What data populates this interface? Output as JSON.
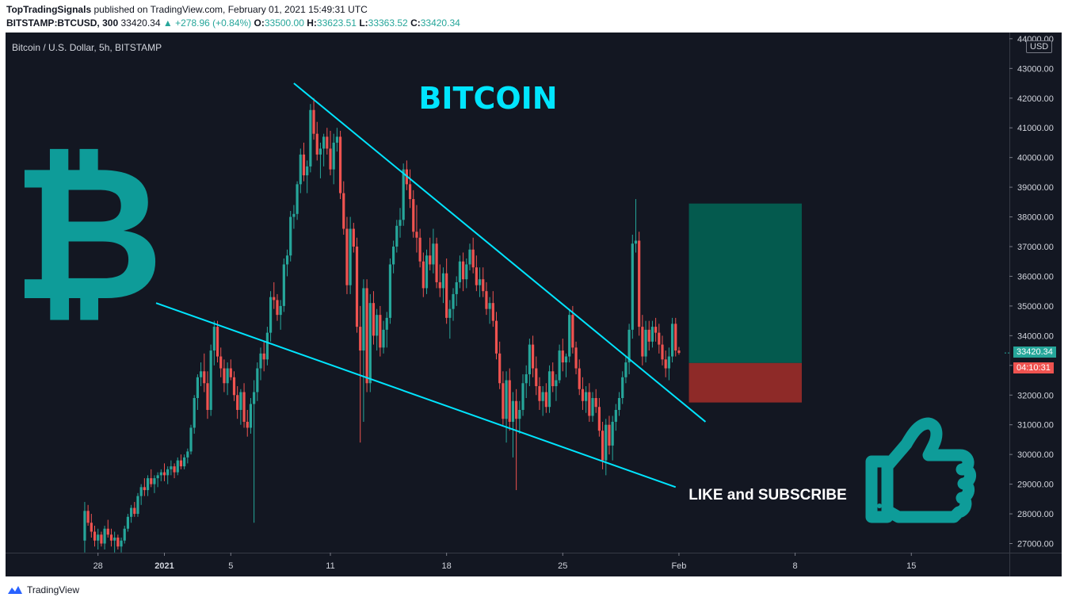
{
  "header": {
    "publisher": "TopTradingSignals",
    "published_text": "published on TradingView.com, February 01, 2021 15:49:31 UTC",
    "symbol": "BITSTAMP:BTCUSD, 300",
    "last": "33420.34",
    "change": "▲ +278.96 (+0.84%)",
    "o_label": "O:",
    "o_value": "33500.00",
    "h_label": "H:",
    "h_value": "33623.51",
    "l_label": "L:",
    "l_value": "33363.52",
    "c_label": "C:",
    "c_value": "33420.34"
  },
  "chart_data": {
    "type": "candlestick",
    "title": "Bitcoin / U.S. Dollar, 5h, BITSTAMP",
    "currency": "USD",
    "y_ticks": [
      "27000.00",
      "28000.00",
      "29000.00",
      "30000.00",
      "31000.00",
      "32000.00",
      "33000.00",
      "34000.00",
      "35000.00",
      "36000.00",
      "37000.00",
      "38000.00",
      "39000.00",
      "40000.00",
      "41000.00",
      "42000.00",
      "43000.00",
      "44000.00"
    ],
    "ylim": [
      26700,
      44100
    ],
    "x_ticks": [
      {
        "label": "28",
        "day": -4
      },
      {
        "label": "2021",
        "day": 0
      },
      {
        "label": "5",
        "day": 4
      },
      {
        "label": "11",
        "day": 10
      },
      {
        "label": "18",
        "day": 17
      },
      {
        "label": "25",
        "day": 24
      },
      {
        "label": "Feb",
        "day": 31
      },
      {
        "label": "8",
        "day": 38
      },
      {
        "label": "15",
        "day": 45
      }
    ],
    "last_price": "33420.34",
    "countdown": "04:10:31",
    "trendlines": [
      {
        "x1": 7.8,
        "y1": 42500,
        "x2": 32.6,
        "y2": 31100
      },
      {
        "x1": -0.5,
        "y1": 35100,
        "x2": 30.8,
        "y2": 28900
      }
    ],
    "long_position": {
      "x_start": 31.6,
      "x_end": 38.4,
      "target": 38450,
      "entry": 33080,
      "stop": 31750
    },
    "colors": {
      "up": "#26a69a",
      "down": "#ef5350",
      "trend": "#00e5ff",
      "target_fill": "#045a4e",
      "stop_fill": "#8e2a28",
      "bg": "#131722"
    },
    "candles_ohlc": [
      [
        -4.8,
        27100,
        28400,
        26700,
        28100
      ],
      [
        -4.6,
        28100,
        28300,
        27600,
        27700
      ],
      [
        -4.4,
        27700,
        28000,
        27200,
        27400
      ],
      [
        -4.2,
        27400,
        27600,
        26900,
        27100
      ],
      [
        -4.0,
        27100,
        27500,
        26800,
        27300
      ],
      [
        -3.8,
        27300,
        27400,
        26900,
        27000
      ],
      [
        -3.6,
        27000,
        27600,
        26800,
        27500
      ],
      [
        -3.4,
        27500,
        27800,
        27200,
        27300
      ],
      [
        -3.2,
        27300,
        27500,
        26900,
        27100
      ],
      [
        -3.0,
        27100,
        27400,
        26700,
        27200
      ],
      [
        -2.8,
        27200,
        27300,
        26800,
        26900
      ],
      [
        -2.6,
        26900,
        27200,
        26700,
        27100
      ],
      [
        -2.4,
        27100,
        27600,
        27000,
        27500
      ],
      [
        -2.2,
        27500,
        28000,
        27400,
        27900
      ],
      [
        -2.0,
        27900,
        28300,
        27700,
        28200
      ],
      [
        -1.8,
        28200,
        28400,
        27900,
        28000
      ],
      [
        -1.6,
        28000,
        28700,
        27900,
        28600
      ],
      [
        -1.4,
        28600,
        29000,
        28300,
        28900
      ],
      [
        -1.2,
        28900,
        29200,
        28600,
        28800
      ],
      [
        -1.0,
        28800,
        29300,
        28600,
        29200
      ],
      [
        -0.8,
        29200,
        29500,
        28900,
        29000
      ],
      [
        -0.6,
        29000,
        29300,
        28700,
        29200
      ],
      [
        -0.4,
        29200,
        29400,
        28900,
        29300
      ],
      [
        -0.2,
        29300,
        29500,
        29100,
        29400
      ],
      [
        0.0,
        29400,
        29700,
        29100,
        29300
      ],
      [
        0.2,
        29300,
        29600,
        29000,
        29500
      ],
      [
        0.4,
        29500,
        29800,
        29300,
        29600
      ],
      [
        0.6,
        29600,
        29700,
        29200,
        29400
      ],
      [
        0.8,
        29400,
        29900,
        29300,
        29800
      ],
      [
        1.0,
        29800,
        30000,
        29500,
        29600
      ],
      [
        1.2,
        29600,
        30000,
        29500,
        29900
      ],
      [
        1.4,
        29900,
        30200,
        29700,
        30100
      ],
      [
        1.6,
        30100,
        31000,
        30000,
        30900
      ],
      [
        1.8,
        30900,
        32000,
        30700,
        31900
      ],
      [
        2.0,
        31900,
        32700,
        31500,
        32600
      ],
      [
        2.2,
        32600,
        33100,
        32300,
        32800
      ],
      [
        2.4,
        32800,
        33400,
        32100,
        32400
      ],
      [
        2.6,
        32400,
        32800,
        31200,
        31500
      ],
      [
        2.8,
        31500,
        33700,
        31300,
        33500
      ],
      [
        3.0,
        33500,
        34500,
        33000,
        34300
      ],
      [
        3.2,
        34300,
        34500,
        33100,
        33300
      ],
      [
        3.4,
        33300,
        33600,
        32600,
        32900
      ],
      [
        3.6,
        32900,
        33200,
        32100,
        32400
      ],
      [
        3.8,
        32400,
        33100,
        32000,
        32900
      ],
      [
        4.0,
        32900,
        33200,
        32500,
        32600
      ],
      [
        4.2,
        32600,
        32800,
        31800,
        32000
      ],
      [
        4.4,
        32000,
        32300,
        31200,
        31500
      ],
      [
        4.6,
        31500,
        32200,
        31000,
        32100
      ],
      [
        4.8,
        32100,
        32400,
        30900,
        31100
      ],
      [
        5.0,
        31100,
        31500,
        30600,
        30900
      ],
      [
        5.2,
        30900,
        31900,
        30700,
        31700
      ],
      [
        5.4,
        31700,
        32500,
        27700,
        32100
      ],
      [
        5.6,
        32100,
        33100,
        31800,
        32900
      ],
      [
        5.8,
        32900,
        33600,
        32500,
        33400
      ],
      [
        6.0,
        33400,
        33800,
        32800,
        33200
      ],
      [
        6.2,
        33200,
        34300,
        33000,
        34100
      ],
      [
        6.4,
        34100,
        35500,
        33800,
        35300
      ],
      [
        6.6,
        35300,
        35800,
        34900,
        35200
      ],
      [
        6.8,
        35200,
        35400,
        34500,
        34700
      ],
      [
        7.0,
        34700,
        35200,
        34200,
        35000
      ],
      [
        7.2,
        35000,
        36600,
        34800,
        36400
      ],
      [
        7.4,
        36400,
        36900,
        36000,
        36700
      ],
      [
        7.6,
        36700,
        38200,
        36500,
        38000
      ],
      [
        7.8,
        38000,
        38400,
        37600,
        38100
      ],
      [
        8.0,
        38100,
        39200,
        37900,
        39100
      ],
      [
        8.2,
        39100,
        40300,
        38800,
        40100
      ],
      [
        8.4,
        40100,
        40500,
        39200,
        39400
      ],
      [
        8.6,
        39400,
        39900,
        38800,
        39700
      ],
      [
        8.8,
        39700,
        41800,
        39500,
        41600
      ],
      [
        9.0,
        41600,
        42000,
        40600,
        40800
      ],
      [
        9.2,
        40800,
        41200,
        39900,
        40100
      ],
      [
        9.4,
        40100,
        40500,
        39300,
        40300
      ],
      [
        9.6,
        40300,
        40800,
        39700,
        40700
      ],
      [
        9.8,
        40700,
        41000,
        40100,
        40300
      ],
      [
        10.0,
        40300,
        40900,
        39400,
        39600
      ],
      [
        10.2,
        39600,
        40800,
        39100,
        40500
      ],
      [
        10.4,
        40500,
        41000,
        40200,
        40700
      ],
      [
        10.6,
        40700,
        40900,
        38600,
        38800
      ],
      [
        10.8,
        38800,
        39200,
        37400,
        37600
      ],
      [
        11.0,
        37600,
        38000,
        35400,
        35700
      ],
      [
        11.2,
        35700,
        38000,
        35400,
        37600
      ],
      [
        11.4,
        37600,
        37800,
        36800,
        37000
      ],
      [
        11.6,
        37000,
        37300,
        34100,
        34300
      ],
      [
        11.8,
        34300,
        35000,
        30400,
        33500
      ],
      [
        12.0,
        33500,
        35900,
        31100,
        35600
      ],
      [
        12.2,
        35600,
        35900,
        32100,
        32400
      ],
      [
        12.4,
        32400,
        35400,
        32100,
        35100
      ],
      [
        12.6,
        35100,
        35500,
        33700,
        34000
      ],
      [
        12.8,
        34000,
        34900,
        33500,
        34700
      ],
      [
        13.0,
        34700,
        35000,
        33300,
        33600
      ],
      [
        13.2,
        33600,
        34500,
        33400,
        34200
      ],
      [
        13.4,
        34200,
        34800,
        33600,
        34600
      ],
      [
        13.6,
        34600,
        36600,
        34400,
        36400
      ],
      [
        13.8,
        36400,
        37200,
        36100,
        37000
      ],
      [
        14.0,
        37000,
        37900,
        36800,
        37700
      ],
      [
        14.2,
        37700,
        38300,
        37300,
        37900
      ],
      [
        14.4,
        37900,
        39800,
        37700,
        39600
      ],
      [
        14.6,
        39600,
        39900,
        38900,
        39100
      ],
      [
        14.8,
        39100,
        39600,
        38300,
        38600
      ],
      [
        15.0,
        38600,
        38900,
        37300,
        37500
      ],
      [
        15.2,
        37500,
        38400,
        36800,
        37300
      ],
      [
        15.4,
        37300,
        37600,
        36300,
        36500
      ],
      [
        15.6,
        36500,
        36800,
        35300,
        35600
      ],
      [
        15.8,
        35600,
        36900,
        35400,
        36700
      ],
      [
        16.0,
        36700,
        37300,
        36200,
        36400
      ],
      [
        16.2,
        36400,
        37600,
        36100,
        37100
      ],
      [
        16.4,
        37100,
        37300,
        35600,
        35800
      ],
      [
        16.6,
        35800,
        36400,
        35300,
        35600
      ],
      [
        16.8,
        35600,
        36300,
        35100,
        36100
      ],
      [
        17.0,
        36100,
        36600,
        34400,
        34600
      ],
      [
        17.2,
        34600,
        35200,
        33900,
        34900
      ],
      [
        17.4,
        34900,
        35600,
        34500,
        35400
      ],
      [
        17.6,
        35400,
        36000,
        35000,
        35800
      ],
      [
        17.8,
        35800,
        36700,
        35600,
        36500
      ],
      [
        18.0,
        36500,
        36800,
        35500,
        35900
      ],
      [
        18.2,
        35900,
        36600,
        35600,
        36400
      ],
      [
        18.4,
        36400,
        37100,
        36200,
        36900
      ],
      [
        18.6,
        36900,
        37300,
        36100,
        36300
      ],
      [
        18.8,
        36300,
        36700,
        35500,
        35700
      ],
      [
        19.0,
        35700,
        36300,
        35300,
        35900
      ],
      [
        19.2,
        35900,
        36300,
        35300,
        35500
      ],
      [
        19.4,
        35500,
        35800,
        34700,
        34900
      ],
      [
        19.6,
        34900,
        35300,
        34400,
        35100
      ],
      [
        19.8,
        35100,
        35500,
        34300,
        34500
      ],
      [
        20.0,
        34500,
        34800,
        33200,
        33400
      ],
      [
        20.2,
        33400,
        33800,
        32200,
        32400
      ],
      [
        20.4,
        32400,
        32800,
        31000,
        31200
      ],
      [
        20.6,
        31200,
        32800,
        30400,
        32500
      ],
      [
        20.8,
        32500,
        32900,
        30800,
        31100
      ],
      [
        21.0,
        31100,
        32100,
        29900,
        31800
      ],
      [
        21.2,
        31800,
        32200,
        28800,
        31200
      ],
      [
        21.4,
        31200,
        31800,
        30700,
        31500
      ],
      [
        21.6,
        31500,
        32700,
        31300,
        32400
      ],
      [
        21.8,
        32400,
        33000,
        31900,
        32700
      ],
      [
        22.0,
        32700,
        33900,
        32300,
        33700
      ],
      [
        22.2,
        33700,
        34000,
        32600,
        32900
      ],
      [
        22.4,
        32900,
        33300,
        32000,
        32300
      ],
      [
        22.6,
        32300,
        32600,
        31500,
        31800
      ],
      [
        22.8,
        31800,
        32300,
        31300,
        32100
      ],
      [
        23.0,
        32100,
        32400,
        31400,
        31600
      ],
      [
        23.2,
        31600,
        33000,
        31400,
        32800
      ],
      [
        23.4,
        32800,
        33100,
        32100,
        32300
      ],
      [
        23.6,
        32300,
        32700,
        31800,
        32500
      ],
      [
        23.8,
        32500,
        33700,
        32400,
        33500
      ],
      [
        24.0,
        33500,
        33900,
        32800,
        33100
      ],
      [
        24.2,
        33100,
        33400,
        32600,
        33300
      ],
      [
        24.4,
        33300,
        34900,
        33100,
        34700
      ],
      [
        24.6,
        34700,
        35000,
        33400,
        33600
      ],
      [
        24.8,
        33600,
        33800,
        32700,
        32900
      ],
      [
        25.0,
        32900,
        33200,
        32000,
        32200
      ],
      [
        25.2,
        32200,
        32600,
        31500,
        31800
      ],
      [
        25.4,
        31800,
        32300,
        31400,
        32100
      ],
      [
        25.6,
        32100,
        32400,
        31100,
        31300
      ],
      [
        25.8,
        31300,
        32100,
        31100,
        31900
      ],
      [
        26.0,
        31900,
        32200,
        31400,
        31600
      ],
      [
        26.2,
        31600,
        31900,
        30600,
        30800
      ],
      [
        26.4,
        30800,
        31100,
        29500,
        29800
      ],
      [
        26.6,
        29800,
        31200,
        29300,
        31000
      ],
      [
        26.8,
        31000,
        31300,
        30000,
        30300
      ],
      [
        27.0,
        30300,
        31300,
        29800,
        31100
      ],
      [
        27.2,
        31100,
        31700,
        30800,
        31500
      ],
      [
        27.4,
        31500,
        32100,
        31300,
        31900
      ],
      [
        27.6,
        31900,
        32800,
        31700,
        32600
      ],
      [
        27.8,
        32600,
        33300,
        32400,
        33100
      ],
      [
        28.0,
        33100,
        34400,
        32700,
        34200
      ],
      [
        28.2,
        34200,
        37400,
        33900,
        37100
      ],
      [
        28.4,
        37100,
        38600,
        36800,
        37200
      ],
      [
        28.6,
        37200,
        37500,
        34000,
        34300
      ],
      [
        28.8,
        34300,
        34700,
        33000,
        33300
      ],
      [
        29.0,
        33300,
        34500,
        33100,
        34200
      ],
      [
        29.2,
        34200,
        34500,
        33500,
        33800
      ],
      [
        29.4,
        33800,
        34500,
        33600,
        34300
      ],
      [
        29.6,
        34300,
        34600,
        33800,
        34100
      ],
      [
        29.8,
        34100,
        34400,
        33400,
        33700
      ],
      [
        30.0,
        33700,
        34000,
        33000,
        33200
      ],
      [
        30.2,
        33200,
        33500,
        32600,
        32900
      ],
      [
        30.4,
        32900,
        33600,
        32500,
        33300
      ],
      [
        30.6,
        33300,
        34600,
        33100,
        34400
      ],
      [
        30.8,
        34400,
        34600,
        33300,
        33500
      ],
      [
        31.0,
        33500,
        33620,
        33360,
        33420
      ]
    ]
  },
  "overlay": {
    "title": "BITCOIN",
    "cta": "LIKE and SUBSCRIBE",
    "btc_symbol": "₿",
    "thumb_icon": "thumbs-up-icon"
  },
  "footer": {
    "brand": "TradingView"
  }
}
